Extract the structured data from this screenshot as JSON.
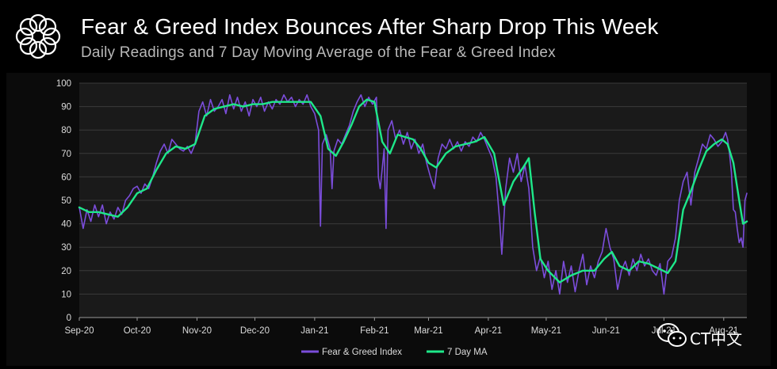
{
  "header": {
    "title": "Fear & Greed Index Bounces After Sharp Drop This Week",
    "subtitle": "Daily Readings and 7 Day Moving Average of the Fear & Greed Index",
    "logo_icon": "flower-ring-logo-icon"
  },
  "watermark": {
    "icon": "wechat-icon",
    "text": "CT中文"
  },
  "colors": {
    "background": "#000000",
    "plot_background": "#1a1a1a",
    "grid": "#3a3a3a",
    "daily_series": "#7b4ddb",
    "ma_series": "#1ee88a"
  },
  "chart_data": {
    "type": "line",
    "title": "Fear & Greed Index Bounces After Sharp Drop This Week",
    "subtitle": "Daily Readings and 7 Day Moving Average of the Fear & Greed Index",
    "xlabel": "",
    "ylabel": "",
    "ylim": [
      0,
      100
    ],
    "yticks": [
      0,
      10,
      20,
      30,
      40,
      50,
      60,
      70,
      80,
      90,
      100
    ],
    "x_range": [
      "2020-09-01",
      "2021-08-13"
    ],
    "xticks": [
      {
        "date": "2020-09-01",
        "label": "Sep-20"
      },
      {
        "date": "2020-10-01",
        "label": "Oct-20"
      },
      {
        "date": "2020-11-01",
        "label": "Nov-20"
      },
      {
        "date": "2020-12-01",
        "label": "Dec-20"
      },
      {
        "date": "2021-01-01",
        "label": "Jan-21"
      },
      {
        "date": "2021-02-01",
        "label": "Feb-21"
      },
      {
        "date": "2021-03-01",
        "label": "Mar-21"
      },
      {
        "date": "2021-04-01",
        "label": "Apr-21"
      },
      {
        "date": "2021-05-01",
        "label": "May-21"
      },
      {
        "date": "2021-06-01",
        "label": "Jun-21"
      },
      {
        "date": "2021-07-01",
        "label": "Jul-21"
      },
      {
        "date": "2021-08-01",
        "label": "Aug-21"
      }
    ],
    "grid": true,
    "legend_position": "bottom-center",
    "series": [
      {
        "name": "Fear & Greed Index",
        "color": "#7b4ddb",
        "points": [
          [
            "2020-09-01",
            47
          ],
          [
            "2020-09-03",
            38
          ],
          [
            "2020-09-05",
            46
          ],
          [
            "2020-09-07",
            41
          ],
          [
            "2020-09-09",
            48
          ],
          [
            "2020-09-11",
            43
          ],
          [
            "2020-09-13",
            48
          ],
          [
            "2020-09-15",
            40
          ],
          [
            "2020-09-17",
            45
          ],
          [
            "2020-09-19",
            42
          ],
          [
            "2020-09-21",
            47
          ],
          [
            "2020-09-23",
            44
          ],
          [
            "2020-09-25",
            50
          ],
          [
            "2020-09-27",
            52
          ],
          [
            "2020-09-29",
            55
          ],
          [
            "2020-10-01",
            56
          ],
          [
            "2020-10-03",
            53
          ],
          [
            "2020-10-05",
            57
          ],
          [
            "2020-10-07",
            55
          ],
          [
            "2020-10-09",
            60
          ],
          [
            "2020-10-11",
            66
          ],
          [
            "2020-10-13",
            71
          ],
          [
            "2020-10-15",
            74
          ],
          [
            "2020-10-17",
            70
          ],
          [
            "2020-10-19",
            76
          ],
          [
            "2020-10-21",
            74
          ],
          [
            "2020-10-23",
            72
          ],
          [
            "2020-10-25",
            71
          ],
          [
            "2020-10-27",
            73
          ],
          [
            "2020-10-29",
            70
          ],
          [
            "2020-10-31",
            74
          ],
          [
            "2020-11-02",
            88
          ],
          [
            "2020-11-04",
            92
          ],
          [
            "2020-11-06",
            86
          ],
          [
            "2020-11-08",
            93
          ],
          [
            "2020-11-10",
            88
          ],
          [
            "2020-11-12",
            90
          ],
          [
            "2020-11-14",
            93
          ],
          [
            "2020-11-16",
            87
          ],
          [
            "2020-11-18",
            95
          ],
          [
            "2020-11-20",
            89
          ],
          [
            "2020-11-22",
            94
          ],
          [
            "2020-11-24",
            88
          ],
          [
            "2020-11-26",
            92
          ],
          [
            "2020-11-28",
            86
          ],
          [
            "2020-11-30",
            93
          ],
          [
            "2020-12-02",
            90
          ],
          [
            "2020-12-04",
            94
          ],
          [
            "2020-12-06",
            88
          ],
          [
            "2020-12-08",
            92
          ],
          [
            "2020-12-10",
            89
          ],
          [
            "2020-12-12",
            93
          ],
          [
            "2020-12-14",
            91
          ],
          [
            "2020-12-16",
            95
          ],
          [
            "2020-12-18",
            92
          ],
          [
            "2020-12-20",
            94
          ],
          [
            "2020-12-22",
            90
          ],
          [
            "2020-12-24",
            93
          ],
          [
            "2020-12-26",
            91
          ],
          [
            "2020-12-28",
            95
          ],
          [
            "2020-12-30",
            90
          ],
          [
            "2021-01-01",
            87
          ],
          [
            "2021-01-03",
            80
          ],
          [
            "2021-01-04",
            39
          ],
          [
            "2021-01-05",
            74
          ],
          [
            "2021-01-07",
            78
          ],
          [
            "2021-01-09",
            72
          ],
          [
            "2021-01-10",
            55
          ],
          [
            "2021-01-11",
            71
          ],
          [
            "2021-01-13",
            76
          ],
          [
            "2021-01-15",
            74
          ],
          [
            "2021-01-17",
            78
          ],
          [
            "2021-01-19",
            82
          ],
          [
            "2021-01-21",
            88
          ],
          [
            "2021-01-23",
            92
          ],
          [
            "2021-01-25",
            95
          ],
          [
            "2021-01-27",
            90
          ],
          [
            "2021-01-29",
            94
          ],
          [
            "2021-01-31",
            91
          ],
          [
            "2021-02-02",
            94
          ],
          [
            "2021-02-03",
            60
          ],
          [
            "2021-02-04",
            55
          ],
          [
            "2021-02-06",
            72
          ],
          [
            "2021-02-07",
            38
          ],
          [
            "2021-02-08",
            80
          ],
          [
            "2021-02-10",
            84
          ],
          [
            "2021-02-12",
            76
          ],
          [
            "2021-02-14",
            80
          ],
          [
            "2021-02-16",
            74
          ],
          [
            "2021-02-18",
            79
          ],
          [
            "2021-02-20",
            72
          ],
          [
            "2021-02-22",
            76
          ],
          [
            "2021-02-24",
            70
          ],
          [
            "2021-02-26",
            74
          ],
          [
            "2021-02-28",
            66
          ],
          [
            "2021-03-02",
            60
          ],
          [
            "2021-03-04",
            55
          ],
          [
            "2021-03-06",
            68
          ],
          [
            "2021-03-08",
            74
          ],
          [
            "2021-03-10",
            72
          ],
          [
            "2021-03-12",
            76
          ],
          [
            "2021-03-14",
            72
          ],
          [
            "2021-03-16",
            75
          ],
          [
            "2021-03-18",
            71
          ],
          [
            "2021-03-20",
            75
          ],
          [
            "2021-03-22",
            73
          ],
          [
            "2021-03-24",
            77
          ],
          [
            "2021-03-26",
            75
          ],
          [
            "2021-03-28",
            79
          ],
          [
            "2021-03-30",
            76
          ],
          [
            "2021-04-01",
            72
          ],
          [
            "2021-04-03",
            68
          ],
          [
            "2021-04-05",
            60
          ],
          [
            "2021-04-07",
            40
          ],
          [
            "2021-04-08",
            27
          ],
          [
            "2021-04-10",
            55
          ],
          [
            "2021-04-12",
            68
          ],
          [
            "2021-04-14",
            62
          ],
          [
            "2021-04-16",
            70
          ],
          [
            "2021-04-18",
            58
          ],
          [
            "2021-04-20",
            65
          ],
          [
            "2021-04-22",
            55
          ],
          [
            "2021-04-24",
            30
          ],
          [
            "2021-04-26",
            20
          ],
          [
            "2021-04-28",
            26
          ],
          [
            "2021-04-30",
            17
          ],
          [
            "2021-05-02",
            24
          ],
          [
            "2021-05-04",
            12
          ],
          [
            "2021-05-06",
            20
          ],
          [
            "2021-05-08",
            10
          ],
          [
            "2021-05-10",
            24
          ],
          [
            "2021-05-12",
            15
          ],
          [
            "2021-05-14",
            22
          ],
          [
            "2021-05-16",
            11
          ],
          [
            "2021-05-18",
            20
          ],
          [
            "2021-05-20",
            27
          ],
          [
            "2021-05-22",
            14
          ],
          [
            "2021-05-24",
            22
          ],
          [
            "2021-05-26",
            17
          ],
          [
            "2021-05-28",
            24
          ],
          [
            "2021-05-30",
            28
          ],
          [
            "2021-06-01",
            38
          ],
          [
            "2021-06-03",
            30
          ],
          [
            "2021-06-05",
            25
          ],
          [
            "2021-06-07",
            12
          ],
          [
            "2021-06-09",
            20
          ],
          [
            "2021-06-11",
            24
          ],
          [
            "2021-06-13",
            18
          ],
          [
            "2021-06-15",
            25
          ],
          [
            "2021-06-17",
            20
          ],
          [
            "2021-06-19",
            27
          ],
          [
            "2021-06-21",
            22
          ],
          [
            "2021-06-23",
            25
          ],
          [
            "2021-06-25",
            20
          ],
          [
            "2021-06-27",
            18
          ],
          [
            "2021-06-29",
            23
          ],
          [
            "2021-07-01",
            10
          ],
          [
            "2021-07-03",
            24
          ],
          [
            "2021-07-05",
            26
          ],
          [
            "2021-07-07",
            34
          ],
          [
            "2021-07-09",
            50
          ],
          [
            "2021-07-11",
            58
          ],
          [
            "2021-07-13",
            62
          ],
          [
            "2021-07-15",
            48
          ],
          [
            "2021-07-17",
            62
          ],
          [
            "2021-07-19",
            68
          ],
          [
            "2021-07-21",
            74
          ],
          [
            "2021-07-23",
            72
          ],
          [
            "2021-07-25",
            78
          ],
          [
            "2021-07-27",
            76
          ],
          [
            "2021-07-29",
            73
          ],
          [
            "2021-07-31",
            75
          ],
          [
            "2021-08-02",
            79
          ],
          [
            "2021-08-03",
            76
          ],
          [
            "2021-08-04",
            70
          ],
          [
            "2021-08-05",
            62
          ],
          [
            "2021-08-06",
            46
          ],
          [
            "2021-08-07",
            45
          ],
          [
            "2021-08-08",
            38
          ],
          [
            "2021-08-09",
            32
          ],
          [
            "2021-08-10",
            34
          ],
          [
            "2021-08-11",
            30
          ],
          [
            "2021-08-12",
            50
          ],
          [
            "2021-08-13",
            53
          ]
        ]
      },
      {
        "name": "7 Day MA",
        "color": "#1ee88a",
        "points": [
          [
            "2020-09-01",
            47
          ],
          [
            "2020-09-06",
            45
          ],
          [
            "2020-09-11",
            45
          ],
          [
            "2020-09-16",
            44
          ],
          [
            "2020-09-21",
            43
          ],
          [
            "2020-09-26",
            47
          ],
          [
            "2020-10-01",
            53
          ],
          [
            "2020-10-06",
            55
          ],
          [
            "2020-10-11",
            63
          ],
          [
            "2020-10-16",
            70
          ],
          [
            "2020-10-21",
            73
          ],
          [
            "2020-10-26",
            72
          ],
          [
            "2020-10-31",
            74
          ],
          [
            "2020-11-05",
            86
          ],
          [
            "2020-11-10",
            89
          ],
          [
            "2020-11-15",
            90
          ],
          [
            "2020-11-20",
            91
          ],
          [
            "2020-11-25",
            90
          ],
          [
            "2020-11-30",
            91
          ],
          [
            "2020-12-05",
            91
          ],
          [
            "2020-12-10",
            92
          ],
          [
            "2020-12-15",
            92
          ],
          [
            "2020-12-20",
            92
          ],
          [
            "2020-12-25",
            92
          ],
          [
            "2020-12-30",
            92
          ],
          [
            "2021-01-04",
            86
          ],
          [
            "2021-01-08",
            72
          ],
          [
            "2021-01-12",
            69
          ],
          [
            "2021-01-16",
            75
          ],
          [
            "2021-01-20",
            82
          ],
          [
            "2021-01-24",
            90
          ],
          [
            "2021-01-28",
            93
          ],
          [
            "2021-02-01",
            92
          ],
          [
            "2021-02-05",
            75
          ],
          [
            "2021-02-09",
            70
          ],
          [
            "2021-02-13",
            78
          ],
          [
            "2021-02-17",
            77
          ],
          [
            "2021-02-21",
            76
          ],
          [
            "2021-02-25",
            72
          ],
          [
            "2021-03-01",
            66
          ],
          [
            "2021-03-05",
            64
          ],
          [
            "2021-03-10",
            70
          ],
          [
            "2021-03-15",
            73
          ],
          [
            "2021-03-20",
            74
          ],
          [
            "2021-03-25",
            75
          ],
          [
            "2021-03-30",
            77
          ],
          [
            "2021-04-04",
            70
          ],
          [
            "2021-04-09",
            48
          ],
          [
            "2021-04-14",
            58
          ],
          [
            "2021-04-19",
            64
          ],
          [
            "2021-04-22",
            68
          ],
          [
            "2021-04-25",
            45
          ],
          [
            "2021-04-28",
            25
          ],
          [
            "2021-05-02",
            20
          ],
          [
            "2021-05-08",
            15
          ],
          [
            "2021-05-14",
            18
          ],
          [
            "2021-05-20",
            20
          ],
          [
            "2021-05-26",
            20
          ],
          [
            "2021-05-31",
            25
          ],
          [
            "2021-06-04",
            28
          ],
          [
            "2021-06-08",
            22
          ],
          [
            "2021-06-13",
            20
          ],
          [
            "2021-06-18",
            24
          ],
          [
            "2021-06-23",
            23
          ],
          [
            "2021-06-28",
            21
          ],
          [
            "2021-07-03",
            19
          ],
          [
            "2021-07-07",
            24
          ],
          [
            "2021-07-11",
            46
          ],
          [
            "2021-07-15",
            54
          ],
          [
            "2021-07-19",
            63
          ],
          [
            "2021-07-23",
            71
          ],
          [
            "2021-07-27",
            74
          ],
          [
            "2021-07-31",
            76
          ],
          [
            "2021-08-03",
            74
          ],
          [
            "2021-08-06",
            66
          ],
          [
            "2021-08-09",
            50
          ],
          [
            "2021-08-11",
            40
          ],
          [
            "2021-08-13",
            41
          ]
        ]
      }
    ]
  }
}
